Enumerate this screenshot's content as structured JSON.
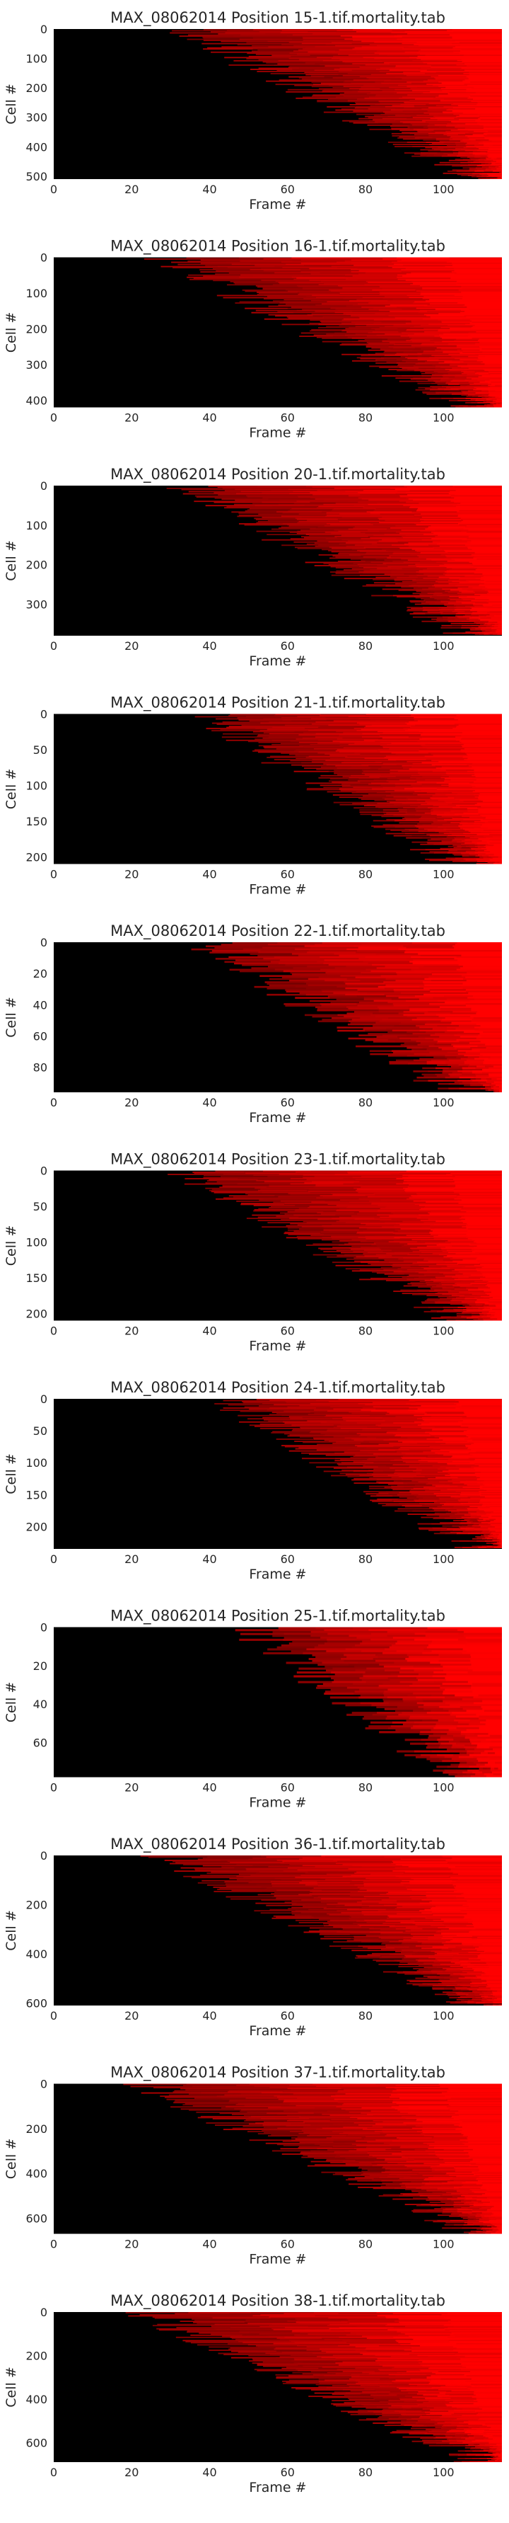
{
  "chart_data": [
    {
      "type": "heatmap",
      "title": "MAX_08062014 Position 15-1.tif.mortality.tab",
      "xlabel": "Frame #",
      "ylabel": "Cell #",
      "xlim": [
        0,
        115
      ],
      "ylim": [
        510,
        0
      ],
      "xticks": [
        "0",
        "20",
        "40",
        "60",
        "80",
        "100"
      ],
      "yticks": [
        "0",
        "100",
        "200",
        "300",
        "400",
        "500"
      ],
      "onset_frame_range": [
        35,
        110
      ],
      "colormap": [
        "#000000",
        "#ff0000"
      ]
    },
    {
      "type": "heatmap",
      "title": "MAX_08062014 Position 16-1.tif.mortality.tab",
      "xlabel": "Frame #",
      "ylabel": "Cell #",
      "xlim": [
        0,
        115
      ],
      "ylim": [
        420,
        0
      ],
      "xticks": [
        "0",
        "20",
        "40",
        "60",
        "80",
        "100"
      ],
      "yticks": [
        "0",
        "100",
        "200",
        "300",
        "400"
      ],
      "onset_frame_range": [
        30,
        108
      ],
      "colormap": [
        "#000000",
        "#ff0000"
      ]
    },
    {
      "type": "heatmap",
      "title": "MAX_08062014 Position 20-1.tif.mortality.tab",
      "xlabel": "Frame #",
      "ylabel": "Cell #",
      "xlim": [
        0,
        115
      ],
      "ylim": [
        380,
        0
      ],
      "xticks": [
        "0",
        "20",
        "40",
        "60",
        "80",
        "100"
      ],
      "yticks": [
        "0",
        "100",
        "200",
        "300"
      ],
      "onset_frame_range": [
        35,
        108
      ],
      "colormap": [
        "#000000",
        "#ff0000"
      ]
    },
    {
      "type": "heatmap",
      "title": "MAX_08062014 Position 21-1.tif.mortality.tab",
      "xlabel": "Frame #",
      "ylabel": "Cell #",
      "xlim": [
        0,
        115
      ],
      "ylim": [
        210,
        0
      ],
      "xticks": [
        "0",
        "20",
        "40",
        "60",
        "80",
        "100"
      ],
      "yticks": [
        "0",
        "50",
        "100",
        "150",
        "200"
      ],
      "onset_frame_range": [
        40,
        105
      ],
      "colormap": [
        "#000000",
        "#ff0000"
      ]
    },
    {
      "type": "heatmap",
      "title": "MAX_08062014 Position 22-1.tif.mortality.tab",
      "xlabel": "Frame #",
      "ylabel": "Cell #",
      "xlim": [
        0,
        115
      ],
      "ylim": [
        96,
        0
      ],
      "xticks": [
        "0",
        "20",
        "40",
        "60",
        "80",
        "100"
      ],
      "yticks": [
        "0",
        "20",
        "40",
        "60",
        "80"
      ],
      "onset_frame_range": [
        40,
        105
      ],
      "colormap": [
        "#000000",
        "#ff0000"
      ]
    },
    {
      "type": "heatmap",
      "title": "MAX_08062014 Position 23-1.tif.mortality.tab",
      "xlabel": "Frame #",
      "ylabel": "Cell #",
      "xlim": [
        0,
        115
      ],
      "ylim": [
        210,
        0
      ],
      "xticks": [
        "0",
        "20",
        "40",
        "60",
        "80",
        "100"
      ],
      "yticks": [
        "0",
        "50",
        "100",
        "150",
        "200"
      ],
      "onset_frame_range": [
        35,
        105
      ],
      "colormap": [
        "#000000",
        "#ff0000"
      ]
    },
    {
      "type": "heatmap",
      "title": "MAX_08062014 Position 24-1.tif.mortality.tab",
      "xlabel": "Frame #",
      "ylabel": "Cell #",
      "xlim": [
        0,
        115
      ],
      "ylim": [
        235,
        0
      ],
      "xticks": [
        "0",
        "20",
        "40",
        "60",
        "80",
        "100"
      ],
      "yticks": [
        "0",
        "50",
        "100",
        "150",
        "200"
      ],
      "onset_frame_range": [
        45,
        110
      ],
      "colormap": [
        "#000000",
        "#ff0000"
      ]
    },
    {
      "type": "heatmap",
      "title": "MAX_08062014 Position 25-1.tif.mortality.tab",
      "xlabel": "Frame #",
      "ylabel": "Cell #",
      "xlim": [
        0,
        115
      ],
      "ylim": [
        78,
        0
      ],
      "xticks": [
        "0",
        "20",
        "40",
        "60",
        "80",
        "100"
      ],
      "yticks": [
        "0",
        "20",
        "40",
        "60"
      ],
      "onset_frame_range": [
        50,
        105
      ],
      "colormap": [
        "#000000",
        "#ff0000"
      ]
    },
    {
      "type": "heatmap",
      "title": "MAX_08062014 Position 36-1.tif.mortality.tab",
      "xlabel": "Frame #",
      "ylabel": "Cell #",
      "xlim": [
        0,
        115
      ],
      "ylim": [
        610,
        0
      ],
      "xticks": [
        "0",
        "20",
        "40",
        "60",
        "80",
        "100"
      ],
      "yticks": [
        "0",
        "200",
        "400",
        "600"
      ],
      "onset_frame_range": [
        30,
        110
      ],
      "colormap": [
        "#000000",
        "#ff0000"
      ]
    },
    {
      "type": "heatmap",
      "title": "MAX_08062014 Position 37-1.tif.mortality.tab",
      "xlabel": "Frame #",
      "ylabel": "Cell #",
      "xlim": [
        0,
        115
      ],
      "ylim": [
        670,
        0
      ],
      "xticks": [
        "0",
        "20",
        "40",
        "60",
        "80",
        "100"
      ],
      "yticks": [
        "0",
        "200",
        "400",
        "600"
      ],
      "onset_frame_range": [
        25,
        110
      ],
      "colormap": [
        "#000000",
        "#ff0000"
      ]
    },
    {
      "type": "heatmap",
      "title": "MAX_08062014 Position 38-1.tif.mortality.tab",
      "xlabel": "Frame #",
      "ylabel": "Cell #",
      "xlim": [
        0,
        115
      ],
      "ylim": [
        690,
        0
      ],
      "xticks": [
        "0",
        "20",
        "40",
        "60",
        "80",
        "100"
      ],
      "yticks": [
        "0",
        "200",
        "400",
        "600"
      ],
      "onset_frame_range": [
        25,
        110
      ],
      "colormap": [
        "#000000",
        "#ff0000"
      ]
    }
  ]
}
